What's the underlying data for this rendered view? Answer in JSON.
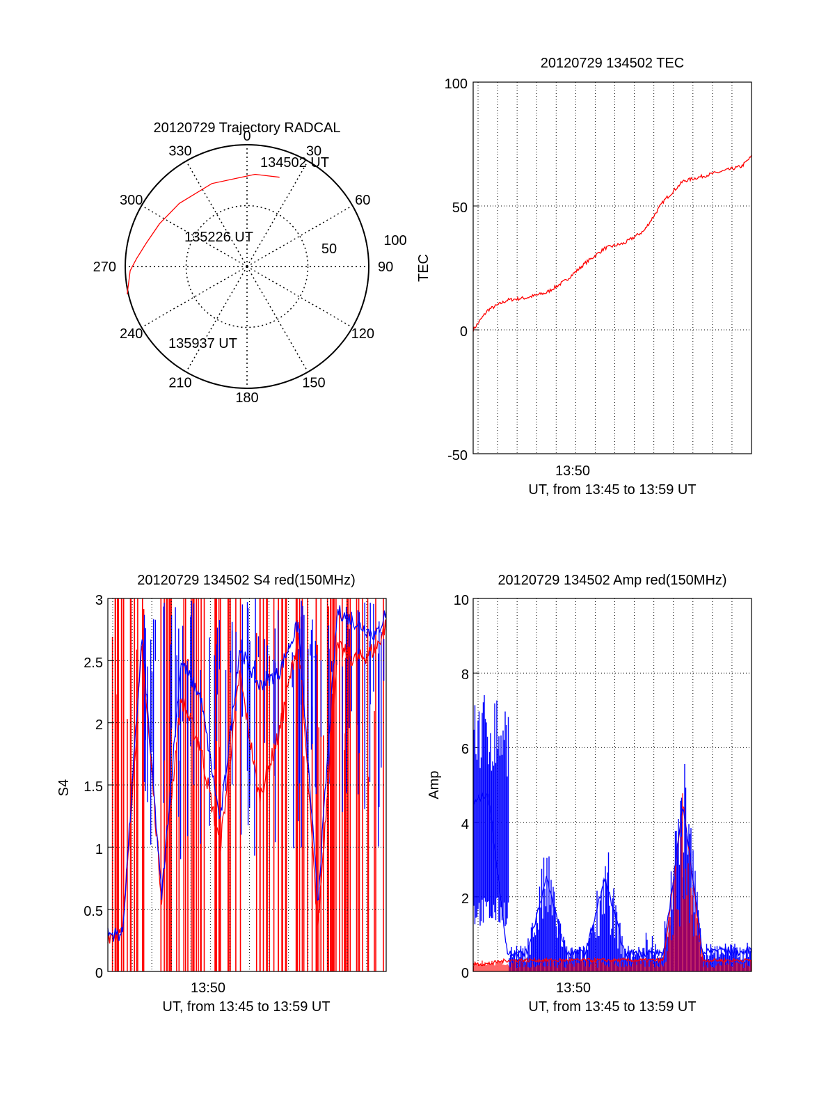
{
  "chart_data": [
    {
      "type": "polar",
      "title": "20120729 Trajectory RADCAL",
      "angle_ticks": [
        0,
        30,
        60,
        90,
        120,
        150,
        180,
        210,
        240,
        270,
        300,
        330
      ],
      "radius_ticks": [
        50,
        100
      ],
      "annotations": [
        "134502 UT",
        "135226 UT",
        "135937 UT"
      ],
      "colors": {
        "trajectory": "#ff0000"
      },
      "series": [
        {
          "azimuth": [
            20,
            5,
            337,
            313,
            296,
            283,
            274,
            268,
            257
          ],
          "zenith_angle": [
            78,
            76,
            74,
            76,
            80,
            85,
            91,
            96,
            101
          ]
        }
      ]
    },
    {
      "type": "line",
      "title": "20120729 134502 TEC",
      "xlabel": "UT, from 13:45 to 13:59 UT",
      "ylabel": "TEC",
      "x_tick_labels": [
        "13:50"
      ],
      "y_tick_labels": [
        "100",
        "50",
        "0",
        "-50"
      ],
      "ylim": [
        -50,
        100
      ],
      "xlim_minutes": [
        13.75,
        28
      ],
      "grid": true,
      "colors": {
        "line": "#ff0000"
      },
      "series": [
        {
          "x_minutes": [
            13.75,
            14.5,
            15.5,
            16.5,
            17.5,
            18.5,
            19.5,
            20.5,
            21.5,
            22.5,
            23.5,
            24.5,
            25.5,
            26.5,
            27.5,
            28
          ],
          "y": [
            0,
            8,
            12,
            13,
            15,
            20,
            27,
            33,
            35,
            40,
            52,
            60,
            62,
            64,
            66,
            70
          ]
        }
      ]
    },
    {
      "type": "line",
      "title": "20120729 134502 S4 red(150MHz)",
      "xlabel": "UT, from 13:45 to 13:59 UT",
      "ylabel": "S4",
      "x_tick_labels": [
        "13:50"
      ],
      "y_tick_labels": [
        "3",
        "2.5",
        "2",
        "1.5",
        "1",
        "0.5",
        "0"
      ],
      "ylim": [
        0,
        3
      ],
      "xlim_minutes": [
        13.75,
        28
      ],
      "grid": true,
      "colors": {
        "red": "#ff0000",
        "blue": "#0000ff"
      },
      "series": [
        {
          "x_minutes": [
            13.75,
            14.5,
            15.5,
            16.5,
            17.5,
            18.5,
            19.5,
            20.5,
            21.5,
            22.5,
            23.5,
            24.5,
            25.5,
            26.5,
            27.5,
            28
          ],
          "y": [
            0.3,
            0.3,
            2.6,
            0.6,
            2.2,
            1.8,
            1.0,
            2.4,
            1.4,
            1.9,
            2.7,
            0.35,
            2.6,
            2.5,
            2.6,
            2.8
          ]
        },
        {
          "x_minutes": [
            13.75,
            14.5,
            15.5,
            16.5,
            17.5,
            18.5,
            19.5,
            20.5,
            21.5,
            22.5,
            23.5,
            24.5,
            25.5,
            26.5,
            27.5,
            28
          ],
          "y": [
            0.3,
            0.3,
            2.7,
            0.6,
            2.5,
            2.2,
            1.2,
            2.6,
            2.3,
            2.4,
            2.8,
            0.55,
            2.9,
            2.8,
            2.7,
            2.9
          ]
        }
      ]
    },
    {
      "type": "line",
      "title": "20120729 134502 Amp red(150MHz)",
      "xlabel": "UT, from 13:45 to 13:59 UT",
      "ylabel": "Amp",
      "x_tick_labels": [
        "13:50"
      ],
      "y_tick_labels": [
        "10",
        "8",
        "6",
        "4",
        "2",
        "0"
      ],
      "ylim": [
        0,
        10
      ],
      "xlim_minutes": [
        13.75,
        28
      ],
      "grid": true,
      "colors": {
        "red": "#ff0000",
        "blue": "#0000ff"
      },
      "series": [
        {
          "x_minutes": [
            13.75,
            14.5,
            15.5,
            16.5,
            17.5,
            18.5,
            19.5,
            20.5,
            21.5,
            22.5,
            23.5,
            24.5,
            25.5,
            26.5,
            27.5,
            28
          ],
          "y": [
            0.2,
            0.2,
            0.3,
            0.3,
            0.3,
            0.3,
            0.3,
            0.3,
            0.3,
            0.3,
            0.3,
            4.5,
            0.3,
            0.3,
            0.3,
            0.3
          ]
        },
        {
          "x_minutes": [
            13.75,
            14.5,
            15.5,
            16.5,
            17.5,
            18.5,
            19.5,
            20.5,
            21.5,
            22.5,
            23.5,
            24.5,
            25.5,
            26.5,
            27.5,
            28
          ],
          "y": [
            4.5,
            4.8,
            0.5,
            0.5,
            2.5,
            0.5,
            0.5,
            2.5,
            0.5,
            0.5,
            0.5,
            4.5,
            0.5,
            0.6,
            0.5,
            0.6
          ]
        }
      ]
    }
  ]
}
